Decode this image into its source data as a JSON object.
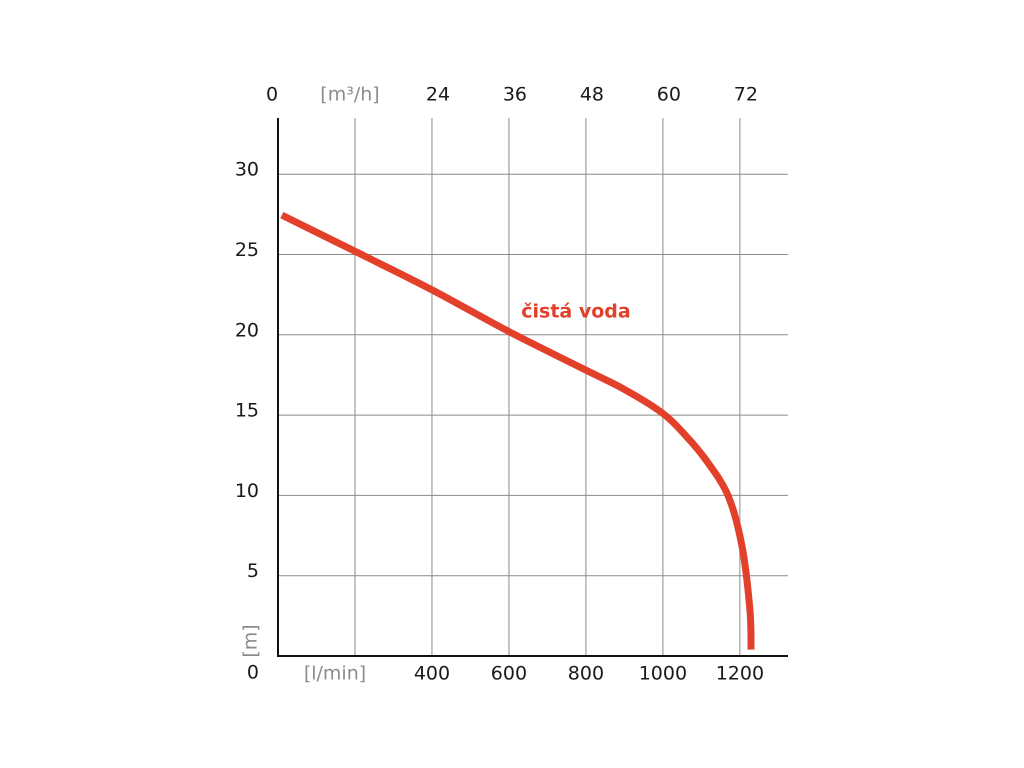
{
  "chart_data": {
    "type": "line",
    "x_label": "[l/min]",
    "x2_label": "[m³/h]",
    "y_label": "[m]",
    "xlim": [
      0,
      1325
    ],
    "xticks": [
      400,
      600,
      800,
      1000,
      1200
    ],
    "xgrid": [
      200,
      400,
      600,
      800,
      1000,
      1200
    ],
    "x2lim": [
      0,
      79.5
    ],
    "x2ticks": [
      0,
      24,
      36,
      48,
      60,
      72
    ],
    "ylim": [
      0,
      33.5
    ],
    "yticks": [
      0,
      5,
      10,
      15,
      20,
      25,
      30
    ],
    "grid": true,
    "series": [
      {
        "name": "čistá voda",
        "color": "#e2402a",
        "x": [
          10,
          200,
          400,
          600,
          800,
          900,
          1000,
          1060,
          1112,
          1169,
          1205,
          1226,
          1229
        ],
        "values": [
          27.45,
          25.2,
          22.8,
          20.2,
          17.8,
          16.6,
          15.1,
          13.7,
          12.2,
          10,
          6.9,
          2.9,
          0.4
        ]
      }
    ]
  }
}
